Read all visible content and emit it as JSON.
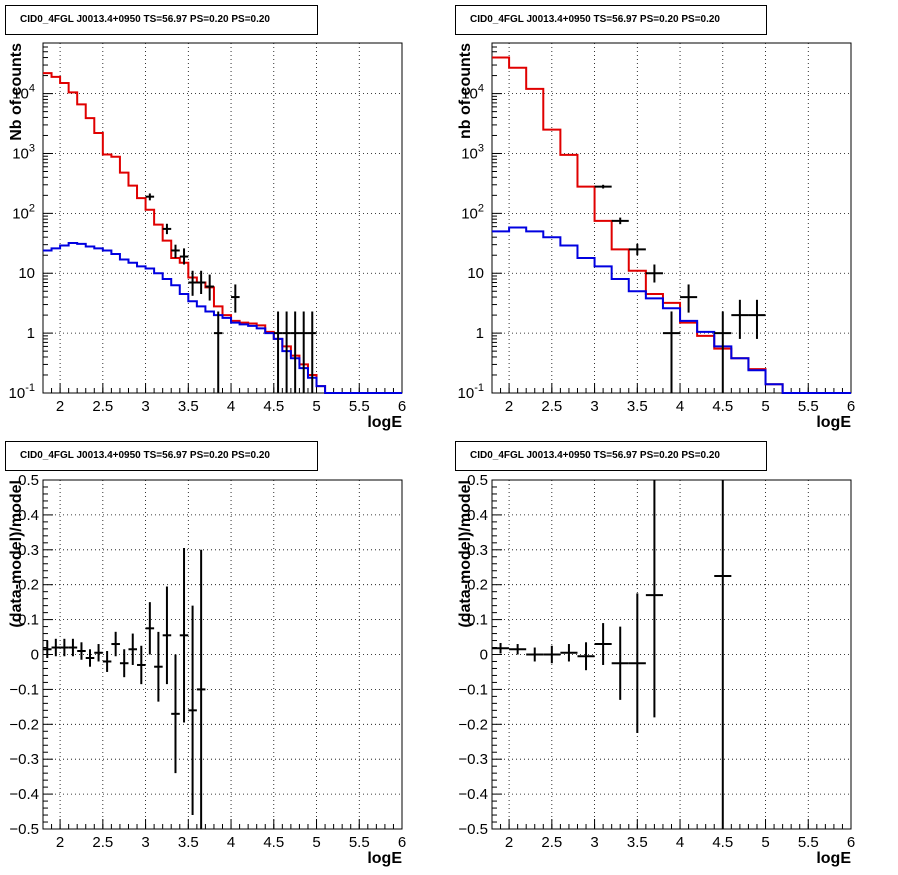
{
  "chart_data": [
    {
      "type": "histogram",
      "title": "CID0_4FGL J0013.4+0950 TS=56.97 PS=0.20 PS=0.20",
      "xlabel": "logE",
      "ylabel": "Nb of counts",
      "xlim": [
        1.8,
        6.0
      ],
      "ylim": [
        0.1,
        70000
      ],
      "yscale": "log",
      "grid": true,
      "x_ticks": [
        "2",
        "2.5",
        "3",
        "3.5",
        "4",
        "4.5",
        "5",
        "5.5",
        "6"
      ],
      "y_ticks": [
        "10^-1",
        "1",
        "10",
        "10^2",
        "10^3",
        "10^4"
      ],
      "series": [
        {
          "color": "#e00000",
          "bin_width": 0.1,
          "x_edges": [
            1.8,
            1.9,
            2.0,
            2.1,
            2.2,
            2.3,
            2.4,
            2.5,
            2.6,
            2.7,
            2.8,
            2.9,
            3.0,
            3.1,
            3.2,
            3.3,
            3.4,
            3.5,
            3.6,
            3.7,
            3.8,
            3.9,
            4.0,
            4.1,
            4.2,
            4.3,
            4.4,
            4.5,
            4.6,
            4.7,
            4.8,
            4.9,
            5.0,
            5.1,
            5.2,
            5.3,
            5.4,
            5.5,
            5.6,
            5.7,
            5.8,
            5.9,
            6.0
          ],
          "values": [
            22000,
            19000,
            15000,
            10500,
            6600,
            3900,
            2200,
            960,
            880,
            480,
            290,
            180,
            115,
            65,
            35,
            18,
            15,
            8.5,
            7,
            5.8,
            2.8,
            2.0,
            1.6,
            1.5,
            1.45,
            1.35,
            1.05,
            0.8,
            0.6,
            0.42,
            0.3,
            0.2,
            0.13,
            0.1,
            0.1,
            0.1,
            0.1,
            0.1,
            0.1,
            0.1,
            0.1,
            0.1
          ]
        },
        {
          "color": "#0000e0",
          "bin_width": 0.1,
          "x_edges": [
            1.8,
            1.9,
            2.0,
            2.1,
            2.2,
            2.3,
            2.4,
            2.5,
            2.6,
            2.7,
            2.8,
            2.9,
            3.0,
            3.1,
            3.2,
            3.3,
            3.4,
            3.5,
            3.6,
            3.7,
            3.8,
            3.9,
            4.0,
            4.1,
            4.2,
            4.3,
            4.4,
            4.5,
            4.6,
            4.7,
            4.8,
            4.9,
            5.0,
            5.1,
            5.2,
            5.3,
            5.4,
            5.5,
            5.6,
            5.7,
            5.8,
            5.9,
            6.0
          ],
          "values": [
            24,
            26,
            29,
            32,
            31,
            28,
            26,
            24,
            21,
            17,
            15,
            13,
            12,
            10,
            8,
            6.3,
            4.5,
            3.4,
            2.8,
            2.3,
            2.0,
            1.8,
            1.5,
            1.4,
            1.32,
            1.2,
            1.0,
            0.8,
            0.5,
            0.38,
            0.26,
            0.18,
            0.13,
            0.1,
            0.1,
            0.1,
            0.1,
            0.1,
            0.1,
            0.1,
            0.1,
            0.1
          ]
        },
        {
          "type": "errorbar",
          "color": "#000000",
          "xerr": 0.05,
          "points": [
            {
              "x": 3.05,
              "y": 190,
              "lo": 165,
              "hi": 215
            },
            {
              "x": 3.25,
              "y": 55,
              "lo": 45,
              "hi": 67
            },
            {
              "x": 3.35,
              "y": 24,
              "lo": 18,
              "hi": 30
            },
            {
              "x": 3.45,
              "y": 19,
              "lo": 14,
              "hi": 26
            },
            {
              "x": 3.55,
              "y": 7,
              "lo": 4.2,
              "hi": 11
            },
            {
              "x": 3.65,
              "y": 7,
              "lo": 4.5,
              "hi": 11
            },
            {
              "x": 3.75,
              "y": 6,
              "lo": 3.5,
              "hi": 9.5
            },
            {
              "x": 3.85,
              "y": 1,
              "lo": 0.1,
              "hi": 2.3
            },
            {
              "x": 4.05,
              "y": 4,
              "lo": 2.2,
              "hi": 6.5
            },
            {
              "x": 4.55,
              "y": 1,
              "lo": 0.1,
              "hi": 2.3
            },
            {
              "x": 4.65,
              "y": 1,
              "lo": 0.1,
              "hi": 2.3
            },
            {
              "x": 4.75,
              "y": 1,
              "lo": 0.1,
              "hi": 2.3
            },
            {
              "x": 4.85,
              "y": 1,
              "lo": 0.1,
              "hi": 2.3
            },
            {
              "x": 4.95,
              "y": 1,
              "lo": 0.1,
              "hi": 2.3
            }
          ]
        }
      ]
    },
    {
      "type": "histogram",
      "title": "CID0_4FGL J0013.4+0950 TS=56.97 PS=0.20 PS=0.20",
      "xlabel": "logE",
      "ylabel": "nb of counts",
      "xlim": [
        1.8,
        6.0
      ],
      "ylim": [
        0.1,
        70000
      ],
      "yscale": "log",
      "grid": true,
      "x_ticks": [
        "2",
        "2.5",
        "3",
        "3.5",
        "4",
        "4.5",
        "5",
        "5.5",
        "6"
      ],
      "y_ticks": [
        "10^-1",
        "1",
        "10",
        "10^2",
        "10^3",
        "10^4"
      ],
      "series": [
        {
          "color": "#e00000",
          "bin_width": 0.2,
          "x_edges": [
            1.8,
            2.0,
            2.2,
            2.4,
            2.6,
            2.8,
            3.0,
            3.2,
            3.4,
            3.6,
            3.8,
            4.0,
            4.2,
            4.4,
            4.6,
            4.8,
            5.0,
            5.2,
            5.4,
            5.6,
            5.8,
            6.0
          ],
          "values": [
            40000,
            27000,
            12000,
            2500,
            950,
            280,
            75,
            25,
            11,
            4.5,
            3.2,
            1.5,
            0.9,
            0.55,
            0.38,
            0.25,
            0.14,
            0.1,
            0.1,
            0.1,
            0.1
          ]
        },
        {
          "color": "#0000e0",
          "bin_width": 0.2,
          "x_edges": [
            1.8,
            2.0,
            2.2,
            2.4,
            2.6,
            2.8,
            3.0,
            3.2,
            3.4,
            3.6,
            3.8,
            4.0,
            4.2,
            4.4,
            4.6,
            4.8,
            5.0,
            5.2,
            5.4,
            5.6,
            5.8,
            6.0
          ],
          "values": [
            50,
            58,
            50,
            40,
            29,
            18,
            13,
            8,
            5,
            3.8,
            2.6,
            1.6,
            1.05,
            0.6,
            0.38,
            0.24,
            0.14,
            0.1,
            0.1,
            0.1,
            0.1
          ]
        },
        {
          "type": "errorbar",
          "color": "#000000",
          "xerr": 0.1,
          "points": [
            {
              "x": 3.1,
              "y": 280,
              "lo": 260,
              "hi": 300
            },
            {
              "x": 3.3,
              "y": 75,
              "lo": 66,
              "hi": 85
            },
            {
              "x": 3.5,
              "y": 25,
              "lo": 20,
              "hi": 31
            },
            {
              "x": 3.7,
              "y": 10,
              "lo": 7,
              "hi": 14
            },
            {
              "x": 3.9,
              "y": 1,
              "lo": 0.1,
              "hi": 2.3
            },
            {
              "x": 4.1,
              "y": 4,
              "lo": 2.2,
              "hi": 6.5
            },
            {
              "x": 4.5,
              "y": 1,
              "lo": 0.1,
              "hi": 2.3
            },
            {
              "x": 4.7,
              "y": 2,
              "lo": 0.8,
              "hi": 3.6
            },
            {
              "x": 4.9,
              "y": 2,
              "lo": 0.8,
              "hi": 3.6
            }
          ]
        }
      ]
    },
    {
      "type": "scatter",
      "title": "CID0_4FGL J0013.4+0950 TS=56.97 PS=0.20 PS=0.20",
      "xlabel": "logE",
      "ylabel": "(data-model)/model",
      "xlim": [
        1.8,
        6.0
      ],
      "ylim": [
        -0.5,
        0.5
      ],
      "grid": true,
      "x_ticks": [
        "2",
        "2.5",
        "3",
        "3.5",
        "4",
        "4.5",
        "5",
        "5.5",
        "6"
      ],
      "y_ticks": [
        "−0.5",
        "−0.4",
        "−0.3",
        "−0.2",
        "−0.1",
        "0",
        "0.1",
        "0.2",
        "0.3",
        "0.4",
        "0.5"
      ],
      "series": [
        {
          "type": "errorbar",
          "color": "#000000",
          "xerr": 0.05,
          "points": [
            {
              "x": 1.85,
              "y": 0.015,
              "e": 0.025
            },
            {
              "x": 1.95,
              "y": 0.02,
              "e": 0.025
            },
            {
              "x": 2.05,
              "y": 0.02,
              "e": 0.025
            },
            {
              "x": 2.15,
              "y": 0.02,
              "e": 0.025
            },
            {
              "x": 2.25,
              "y": 0.01,
              "e": 0.025
            },
            {
              "x": 2.35,
              "y": -0.01,
              "e": 0.025
            },
            {
              "x": 2.45,
              "y": 0.005,
              "e": 0.025
            },
            {
              "x": 2.55,
              "y": -0.02,
              "e": 0.03
            },
            {
              "x": 2.65,
              "y": 0.03,
              "e": 0.035
            },
            {
              "x": 2.75,
              "y": -0.025,
              "e": 0.04
            },
            {
              "x": 2.85,
              "y": 0.015,
              "e": 0.045
            },
            {
              "x": 2.95,
              "y": -0.03,
              "e": 0.055
            },
            {
              "x": 3.05,
              "y": 0.075,
              "e": 0.075
            },
            {
              "x": 3.15,
              "y": -0.035,
              "e": 0.1
            },
            {
              "x": 3.25,
              "y": 0.055,
              "e": 0.14
            },
            {
              "x": 3.35,
              "y": -0.17,
              "e": 0.17
            },
            {
              "x": 3.45,
              "y": 0.055,
              "e": 0.25
            },
            {
              "x": 3.55,
              "y": -0.16,
              "e": 0.3
            },
            {
              "x": 3.65,
              "y": -0.1,
              "e": 0.4
            }
          ]
        }
      ]
    },
    {
      "type": "scatter",
      "title": "CID0_4FGL J0013.4+0950 TS=56.97 PS=0.20 PS=0.20",
      "xlabel": "logE",
      "ylabel": "(data-model)/model",
      "xlim": [
        1.8,
        6.0
      ],
      "ylim": [
        -0.5,
        0.5
      ],
      "grid": true,
      "x_ticks": [
        "2",
        "2.5",
        "3",
        "3.5",
        "4",
        "4.5",
        "5",
        "5.5",
        "6"
      ],
      "y_ticks": [
        "−0.5",
        "−0.4",
        "−0.3",
        "−0.2",
        "−0.1",
        "0",
        "0.1",
        "0.2",
        "0.3",
        "0.4",
        "0.5"
      ],
      "series": [
        {
          "type": "errorbar",
          "color": "#000000",
          "xerr": 0.1,
          "points": [
            {
              "x": 1.9,
              "y": 0.018,
              "e": 0.015
            },
            {
              "x": 2.1,
              "y": 0.015,
              "e": 0.015
            },
            {
              "x": 2.3,
              "y": 0.0,
              "e": 0.02
            },
            {
              "x": 2.5,
              "y": 0.0,
              "e": 0.025
            },
            {
              "x": 2.7,
              "y": 0.005,
              "e": 0.025
            },
            {
              "x": 2.9,
              "y": -0.005,
              "e": 0.04
            },
            {
              "x": 3.1,
              "y": 0.03,
              "e": 0.06
            },
            {
              "x": 3.3,
              "y": -0.025,
              "e": 0.105
            },
            {
              "x": 3.5,
              "y": -0.025,
              "e": 0.2
            },
            {
              "x": 3.7,
              "y": 0.17,
              "e": 0.35
            },
            {
              "x": 4.5,
              "y": 0.225,
              "e": 0.75
            }
          ]
        }
      ]
    }
  ]
}
